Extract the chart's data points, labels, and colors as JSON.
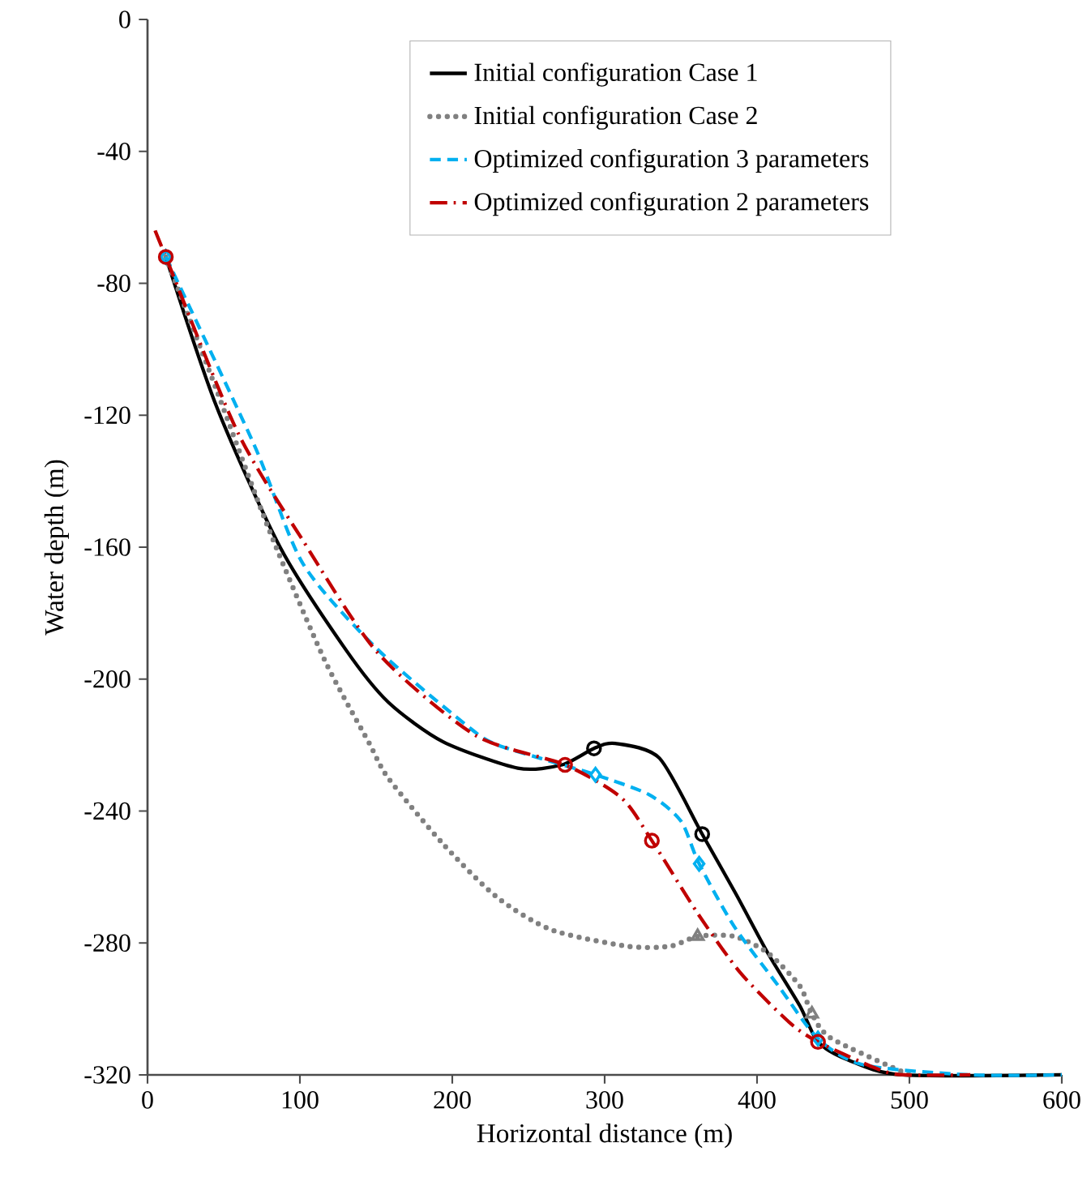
{
  "chart_data": {
    "type": "line",
    "xlabel": "Horizontal distance (m)",
    "ylabel": "Water depth (m)",
    "xlim": [
      0,
      600
    ],
    "ylim": [
      -320,
      0
    ],
    "xticks": [
      0,
      100,
      200,
      300,
      400,
      500,
      600
    ],
    "yticks": [
      -320,
      -280,
      -240,
      -200,
      -160,
      -120,
      -80,
      -40,
      0
    ],
    "grid": false,
    "legend": "top",
    "series": [
      {
        "name": "Initial configuration Case 1",
        "color": "#000000",
        "line_style": "solid",
        "x": [
          12,
          45,
          87,
          130,
          158,
          194,
          243,
          272,
          293,
          307,
          336,
          364,
          386,
          407,
          428,
          440,
          460,
          495,
          600
        ],
        "values": [
          -72,
          -117,
          -160,
          -191,
          -207,
          -219,
          -227,
          -226,
          -221,
          -219.5,
          -224,
          -247,
          -265,
          -283,
          -299,
          -310,
          -315.5,
          -320,
          -320
        ]
      },
      {
        "name": "Initial configuration Case 2",
        "color": "#808080",
        "line_style": "dotted",
        "x": [
          12,
          45,
          80,
          116,
          145,
          158,
          194,
          229,
          265,
          315,
          343,
          361,
          385,
          407,
          428,
          436,
          449,
          500
        ],
        "values": [
          -72,
          -112,
          -155,
          -194,
          -219,
          -230,
          -250,
          -266,
          -276,
          -281,
          -281,
          -278,
          -278,
          -283,
          -293,
          -301.5,
          -309,
          -320
        ]
      },
      {
        "name": "Optimized configuration 3 parameters",
        "color": "#00b0f0",
        "line_style": "dashed",
        "x": [
          12,
          70,
          102,
          151,
          212,
          230,
          265,
          294,
          329,
          350,
          362,
          385,
          414,
          440,
          470,
          540,
          600
        ],
        "values": [
          -72,
          -129,
          -165,
          -191,
          -215,
          -220,
          -225,
          -229,
          -235,
          -243,
          -256,
          -275,
          -293,
          -309,
          -317,
          -320,
          -320
        ]
      },
      {
        "name": "Optimized configuration 2 parameters",
        "color": "#c00000",
        "line_style": "dashdot",
        "x": [
          5,
          12,
          59,
          102,
          151,
          215,
          274,
          311,
          331,
          361,
          389,
          421,
          440,
          478,
          496,
          540
        ],
        "values": [
          -64,
          -72,
          -125,
          -158,
          -192,
          -217,
          -226,
          -236,
          -249,
          -271,
          -289,
          -304,
          -310,
          -318,
          -320,
          -320
        ]
      },
      {
        "type": "scatter",
        "marker": "circle",
        "color": "#000000",
        "x": [
          293,
          364
        ],
        "values": [
          -221,
          -247
        ]
      },
      {
        "type": "scatter",
        "marker": "triangle",
        "color": "#808080",
        "x": [
          361,
          436
        ],
        "values": [
          -278,
          -301.5
        ]
      },
      {
        "type": "scatter",
        "marker": "diamond",
        "color": "#00b0f0",
        "x": [
          12,
          294,
          362,
          440
        ],
        "values": [
          -72,
          -229,
          -256,
          -309
        ]
      },
      {
        "type": "scatter",
        "marker": "circle",
        "color": "#c00000",
        "x": [
          12,
          274,
          331,
          440
        ],
        "values": [
          -72,
          -226,
          -249,
          -310
        ]
      }
    ]
  }
}
